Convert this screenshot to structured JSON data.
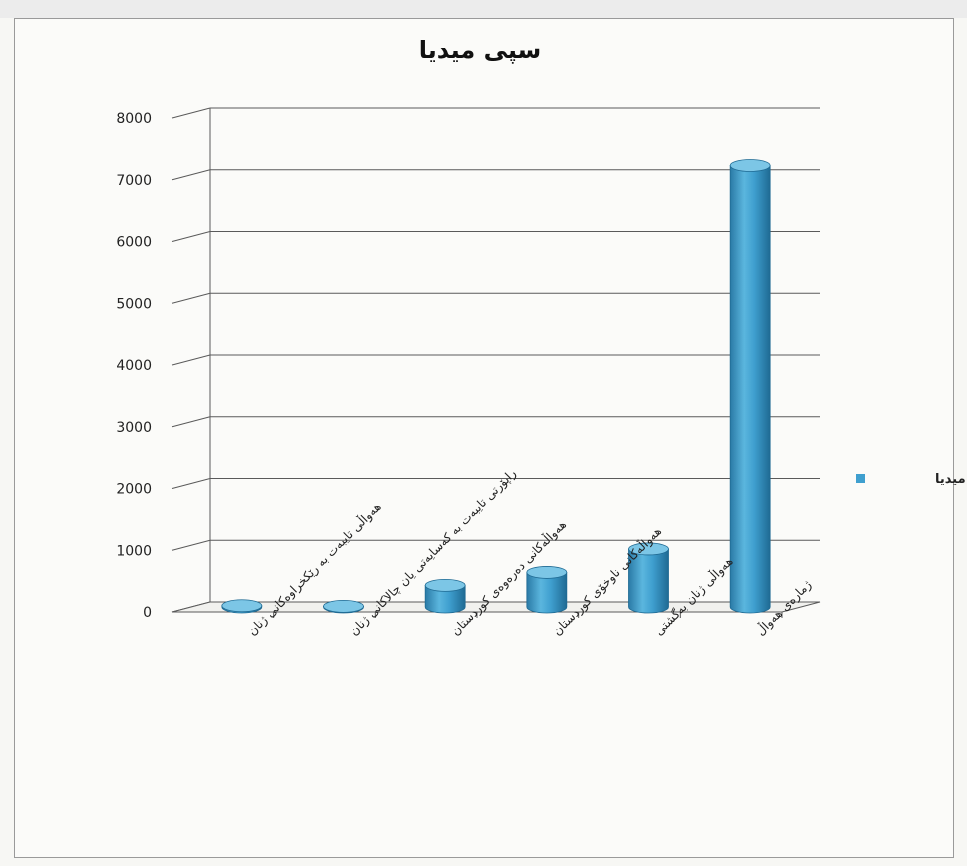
{
  "chart_data": {
    "type": "bar",
    "title": "سپی میدیا",
    "categories": [
      "هەواڵی تایبەت بە رێکخراوەکانی ژنان",
      "راپۆرتی تایبەت بە کەسایەتی یان چالاکانی ژنان",
      "هەواڵەکانی دەرەوەی کوردستان",
      "هەواڵەکانی ناوخۆی کوردستان",
      "هەواڵی ژنان بەگشتی",
      "ژمارەی هەواڵ"
    ],
    "series": [
      {
        "name": "سپی میدیا",
        "values": [
          20,
          10,
          350,
          560,
          940,
          7150
        ]
      }
    ],
    "yticks": [
      0,
      1000,
      2000,
      3000,
      4000,
      5000,
      6000,
      7000,
      8000
    ],
    "ylim": [
      0,
      8000
    ],
    "grid": true,
    "legend_position": "right",
    "colors": {
      "bar": "#3f9fcf",
      "bar_light": "#7cc6e6",
      "bar_dark": "#2a7aa6",
      "grid": "#5a5a5a",
      "text": "#222222"
    }
  }
}
